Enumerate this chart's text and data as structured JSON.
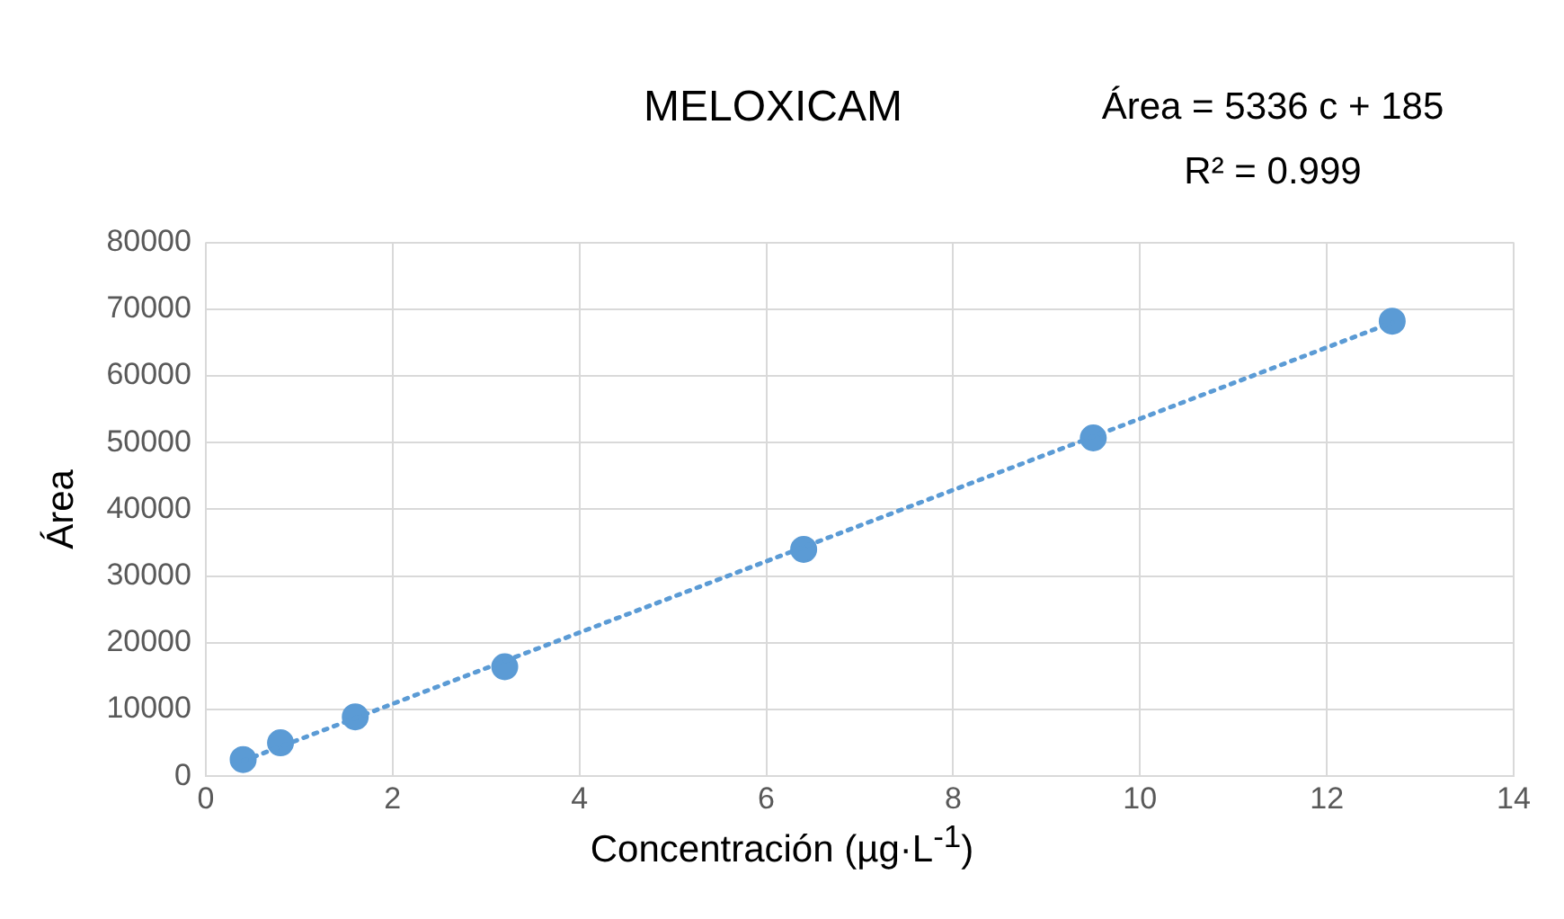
{
  "chart_data": {
    "type": "scatter",
    "title": "MELOXICAM",
    "xlabel": "Concentración (µg·L$^{-1}$)",
    "ylabel": "Área",
    "annotations": [
      "Área = 5336 c + 185",
      "R² = 0.999"
    ],
    "xlim": [
      0,
      14
    ],
    "xticks": [
      0,
      2,
      4,
      6,
      8,
      10,
      12,
      14
    ],
    "ylim": [
      0,
      80000
    ],
    "yticks": [
      0,
      10000,
      20000,
      30000,
      40000,
      50000,
      60000,
      70000,
      80000
    ],
    "grid": true,
    "legend": false,
    "marker": "circle",
    "series": [
      {
        "type": "scatter",
        "color": "#5b9bd5",
        "x": [
          0.4,
          0.8,
          1.6,
          3.2,
          6.4,
          9.5,
          12.7
        ],
        "values": [
          2500,
          5000,
          8900,
          16400,
          34000,
          50700,
          68200
        ]
      },
      {
        "type": "line",
        "color": "#5b9bd5",
        "line_style": "dotted",
        "marker": "none",
        "x": [
          0.4,
          12.7
        ],
        "values": [
          2300,
          68000
        ]
      }
    ]
  }
}
